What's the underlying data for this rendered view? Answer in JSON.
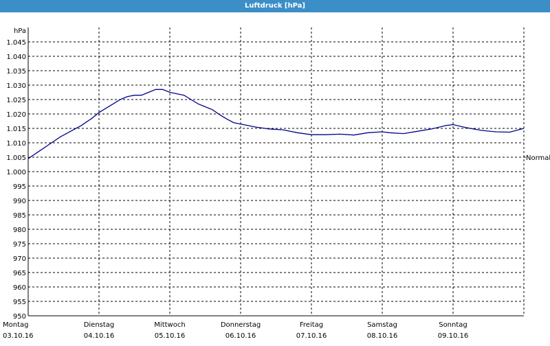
{
  "window": {
    "title": "Luftdruck [hPa]"
  },
  "chart_data": {
    "type": "line",
    "title": "Luftdruck [hPa]",
    "ylabel": "hPa",
    "ylim": [
      950,
      1050
    ],
    "yticks": [
      "950",
      "955",
      "960",
      "965",
      "970",
      "975",
      "980",
      "985",
      "990",
      "995",
      "1.000",
      "1.005",
      "1.010",
      "1.015",
      "1.020",
      "1.025",
      "1.030",
      "1.035",
      "1.040",
      "1.045"
    ],
    "xlim": [
      0,
      7
    ],
    "xticks": [
      {
        "day": "Montag",
        "date": "03.10.16"
      },
      {
        "day": "Dienstag",
        "date": "04.10.16"
      },
      {
        "day": "Mittwoch",
        "date": "05.10.16"
      },
      {
        "day": "Donnerstag",
        "date": "06.10.16"
      },
      {
        "day": "Freitag",
        "date": "07.10.16"
      },
      {
        "day": "Samstag",
        "date": "08.10.16"
      },
      {
        "day": "Sonntag",
        "date": "09.10.16"
      }
    ],
    "reference_line": {
      "label": "Normal",
      "value": 1005
    },
    "grid": true,
    "colors": {
      "line": "#00008b",
      "header": "#3c8ec6"
    },
    "series": [
      {
        "x": [
          0,
          0.15,
          0.3,
          0.45,
          0.6,
          0.75,
          0.9,
          1.0,
          1.1,
          1.2,
          1.3,
          1.4,
          1.5,
          1.6,
          1.7,
          1.8,
          1.9,
          2.0,
          2.1,
          2.2,
          2.3,
          2.4,
          2.5,
          2.6,
          2.7,
          2.8,
          2.9,
          3.0,
          3.1,
          3.2,
          3.4,
          3.6,
          3.8,
          4.0,
          4.2,
          4.4,
          4.6,
          4.8,
          5.0,
          5.1,
          5.3,
          5.5,
          5.7,
          5.9,
          6.0,
          6.2,
          6.4,
          6.6,
          6.8,
          7.0
        ],
        "values": [
          1004.5,
          1007,
          1009.5,
          1012,
          1014,
          1016,
          1018.5,
          1020.5,
          1022,
          1023.5,
          1025,
          1026,
          1026.5,
          1026.5,
          1027.5,
          1028.5,
          1028.5,
          1027.5,
          1027,
          1026.5,
          1025,
          1023.5,
          1022.5,
          1021.5,
          1019.8,
          1018.3,
          1017,
          1016.5,
          1016,
          1015.5,
          1014.8,
          1014.5,
          1013.5,
          1012.8,
          1012.8,
          1013,
          1012.7,
          1013.5,
          1013.8,
          1013.5,
          1013.2,
          1014,
          1014.8,
          1016,
          1016.3,
          1015.2,
          1014.3,
          1013.8,
          1013.7,
          1015
        ]
      }
    ]
  }
}
